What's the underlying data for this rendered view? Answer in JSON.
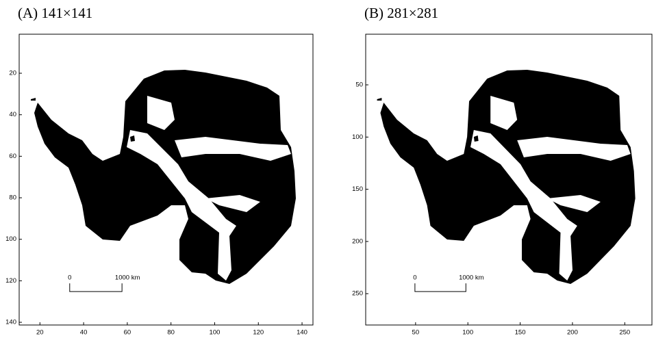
{
  "chart_data": [
    {
      "type": "image",
      "title": "(A) 141×141",
      "xlim": [
        10.5,
        145
      ],
      "ylim": [
        1.2,
        141.3
      ],
      "y_inverted": true,
      "xticks": [
        20,
        40,
        60,
        80,
        100,
        120,
        140
      ],
      "yticks": [
        20,
        40,
        60,
        80,
        100,
        120,
        140
      ],
      "scale_labels": [
        "0",
        "1000 km"
      ]
    },
    {
      "type": "image",
      "title": "(B) 281×281",
      "xlim": [
        2.3,
        276
      ],
      "ylim": [
        1.5,
        280
      ],
      "y_inverted": true,
      "xticks": [
        50,
        100,
        150,
        200,
        250
      ],
      "yticks": [
        50,
        100,
        150,
        200,
        250
      ],
      "scale_labels": [
        "0",
        "1000 km"
      ]
    }
  ]
}
